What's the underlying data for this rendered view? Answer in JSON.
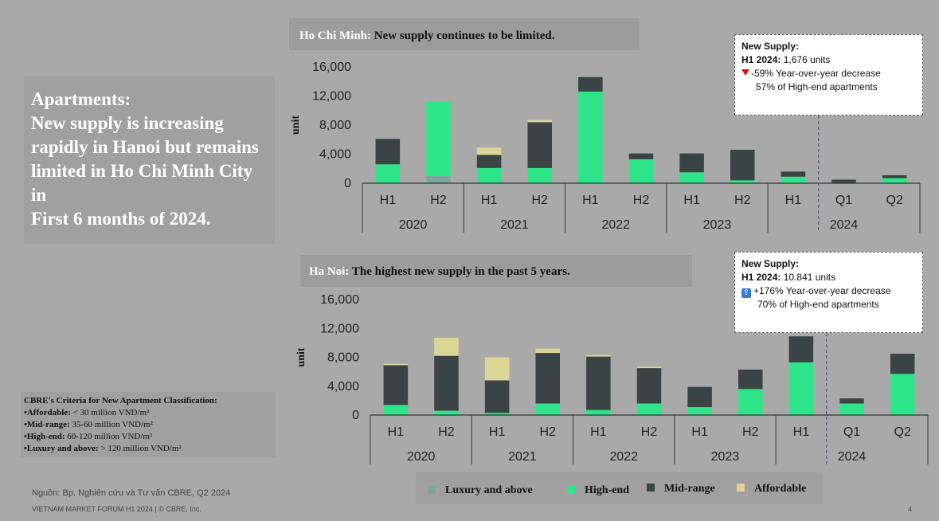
{
  "headline": "Apartments:\nNew supply is increasing rapidly in Hanoi but remains limited in Ho Chi Minh City in\nFirst 6 months of 2024.",
  "criteria": {
    "title": "CBRE's Criteria for New Apartment Classification:",
    "rows": [
      {
        "label": "•Affordable:",
        "value": " < 30 million VND/m²"
      },
      {
        "label": "•Mid-range:",
        "value": " 35-60 million VND/m²"
      },
      {
        "label": "•High-end:",
        "value": " 60-120 million VND/m²"
      },
      {
        "label": "•Luxury and above:",
        "value": " > 120 million VND/m²"
      }
    ]
  },
  "source": "Nguồn: Bp. Nghiên cứu và Tư vấn CBRE, Q2 2024",
  "footer": "VIETNAM MARKET FORUM H1 2024 | © CBRE, Inc.",
  "page_number": "4",
  "hcm": {
    "title_city": "Ho Chi Minh:",
    "title_text": " New supply continues to be limited.",
    "info": {
      "heading": "New Supply:",
      "line1_label": "H1 2024:",
      "line1_value": " 1,676 units",
      "line2": "-59% Year-over-year decrease",
      "line3": "57% of High-end apartments"
    }
  },
  "hanoi": {
    "title_city": "Ha Noi:",
    "title_text": " The highest new supply in the past 5 years.",
    "info": {
      "heading": "New Supply:",
      "line1_label": "H1 2024:",
      "line1_value": " 10.841 units",
      "line2": "+176% Year-over-year decrease",
      "line3": "70% of High-end apartments"
    }
  },
  "legend": [
    {
      "name": "Luxury and above",
      "color": "#7aa79c"
    },
    {
      "name": "High-end",
      "color": "#2ee689"
    },
    {
      "name": "Mid-range",
      "color": "#3a4444"
    },
    {
      "name": "Affordable",
      "color": "#dbd596"
    }
  ],
  "chart_data": [
    {
      "type": "bar",
      "stacked": true,
      "ylabel": "unit",
      "ylim": [
        0,
        16000
      ],
      "yticks": [
        "0",
        "4,000",
        "8,000",
        "12,000",
        "16,000"
      ],
      "categories": [
        "H1",
        "H2",
        "H1",
        "H2",
        "H1",
        "H2",
        "H1",
        "H2",
        "H1",
        "Q1",
        "Q2"
      ],
      "groups": [
        {
          "label": "2020",
          "count": 2
        },
        {
          "label": "2021",
          "count": 2
        },
        {
          "label": "2022",
          "count": 2
        },
        {
          "label": "2023",
          "count": 2
        },
        {
          "label": "2024",
          "count": 3
        }
      ],
      "series": [
        {
          "name": "Luxury and above",
          "values": [
            0,
            1000,
            0,
            0,
            0,
            0,
            0,
            0,
            0,
            0,
            0
          ]
        },
        {
          "name": "High-end",
          "values": [
            2600,
            10200,
            2100,
            2100,
            12600,
            3300,
            1500,
            400,
            900,
            0,
            700
          ]
        },
        {
          "name": "Mid-range",
          "values": [
            3500,
            0,
            1800,
            6300,
            2000,
            800,
            2600,
            4200,
            700,
            500,
            400
          ]
        },
        {
          "name": "Affordable",
          "values": [
            0,
            0,
            1000,
            300,
            0,
            0,
            0,
            0,
            0,
            0,
            0
          ]
        }
      ]
    },
    {
      "type": "bar",
      "stacked": true,
      "ylabel": "unit",
      "ylim": [
        0,
        16000
      ],
      "yticks": [
        "0",
        "4,000",
        "8,000",
        "12,000",
        "16,000"
      ],
      "categories": [
        "H1",
        "H2",
        "H1",
        "H2",
        "H1",
        "H2",
        "H1",
        "H2",
        "H1",
        "Q1",
        "Q2"
      ],
      "groups": [
        {
          "label": "2020",
          "count": 2
        },
        {
          "label": "2021",
          "count": 2
        },
        {
          "label": "2022",
          "count": 2
        },
        {
          "label": "2023",
          "count": 2
        },
        {
          "label": "2024",
          "count": 3
        }
      ],
      "series": [
        {
          "name": "Luxury and above",
          "values": [
            0,
            0,
            0,
            0,
            0,
            0,
            0,
            0,
            0,
            0,
            0
          ]
        },
        {
          "name": "High-end",
          "values": [
            1400,
            600,
            300,
            1600,
            700,
            1600,
            1100,
            3600,
            7300,
            1600,
            5700
          ]
        },
        {
          "name": "Mid-range",
          "values": [
            5500,
            7600,
            4500,
            7000,
            7400,
            4900,
            2800,
            2700,
            3600,
            700,
            2800
          ]
        },
        {
          "name": "Affordable",
          "values": [
            200,
            2500,
            3200,
            600,
            200,
            200,
            0,
            0,
            0,
            0,
            0
          ]
        }
      ]
    }
  ]
}
